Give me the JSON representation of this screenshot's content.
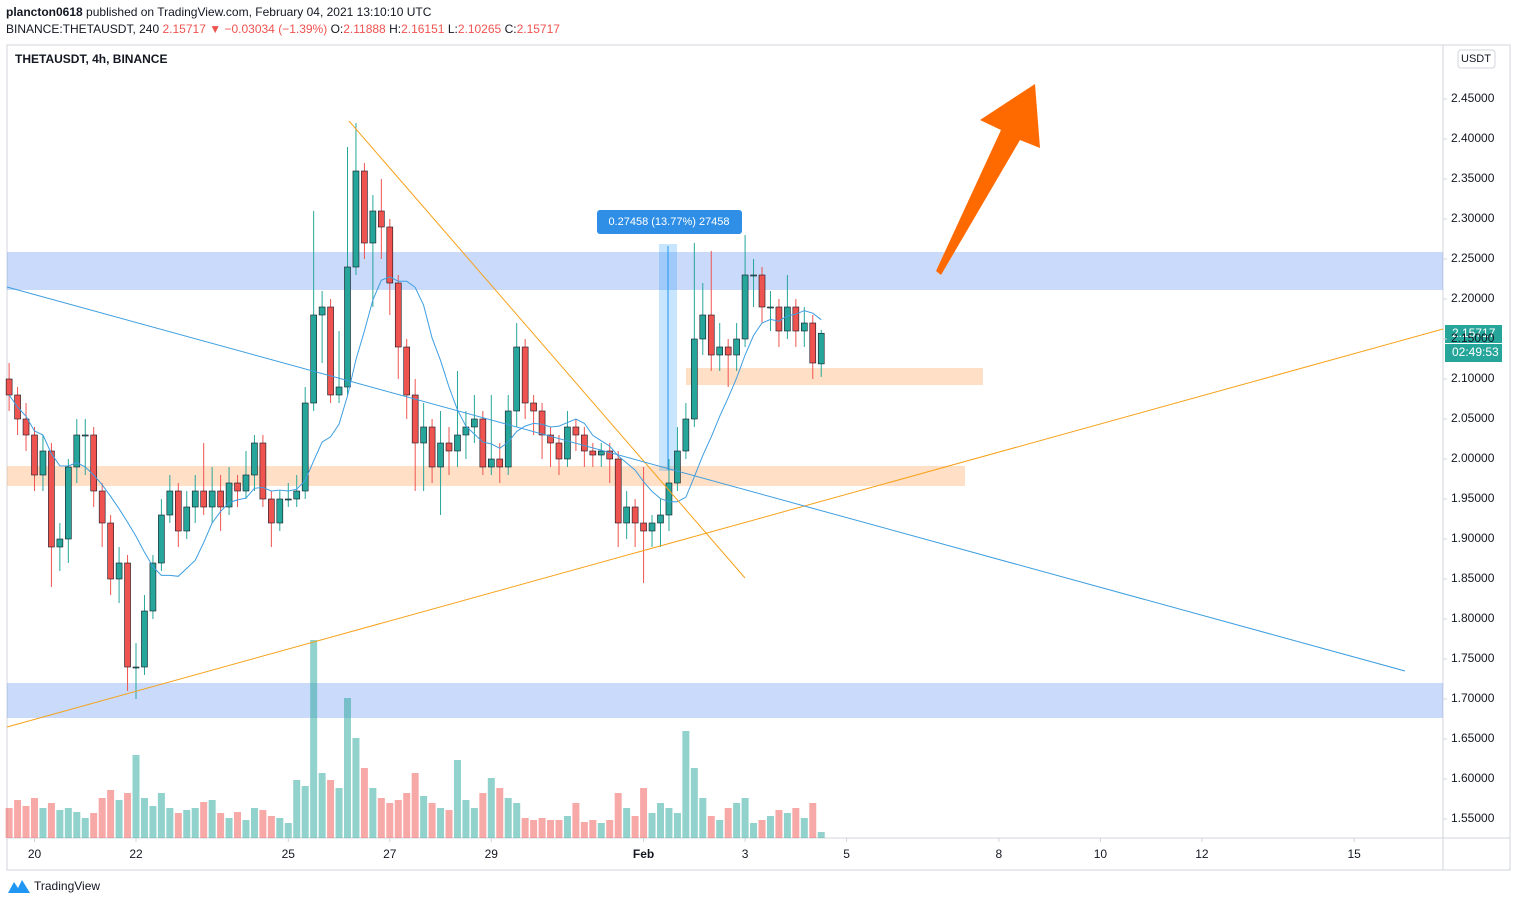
{
  "header": {
    "author": "plancton0618",
    "published": "published on TradingView.com, February 04, 2021 13:10:10 UTC",
    "symbol": "BINANCE:THETAUSDT, 240",
    "arrow": "▼",
    "change": "−0.03034 (−1.39%)",
    "ohlc_labels": [
      "O:",
      "H:",
      "L:",
      "C:"
    ]
  },
  "chart_data": {
    "type": "candlestick",
    "title": "THETAUSDT, 4h, BINANCE",
    "currency": "USDT",
    "x": [
      -12,
      -8,
      -4,
      0,
      4,
      8,
      12,
      16,
      20,
      24,
      28,
      32,
      36,
      40,
      44,
      48,
      52,
      56,
      60,
      64,
      68,
      72,
      76,
      80,
      84,
      88,
      92,
      96,
      100,
      104,
      108,
      112,
      116,
      120,
      124,
      128,
      132,
      136,
      140,
      144,
      148,
      152,
      156,
      160,
      164,
      168,
      172,
      176,
      180,
      184,
      188,
      192,
      196,
      200,
      204,
      208,
      212,
      216,
      220,
      224,
      228,
      232,
      236,
      240,
      244,
      248,
      252,
      256,
      260,
      264,
      268,
      272,
      276,
      280,
      284,
      288,
      292,
      296,
      300,
      304,
      308,
      312,
      316,
      320,
      324,
      328,
      332,
      336,
      340,
      344,
      348,
      352,
      356,
      360,
      364,
      368,
      372
    ],
    "open": [
      2.1,
      2.08,
      2.05,
      2.03,
      1.98,
      2.01,
      1.89,
      1.9,
      1.99,
      2.03,
      2.03,
      1.96,
      1.92,
      1.85,
      1.87,
      1.74,
      1.74,
      1.81,
      1.87,
      1.93,
      1.96,
      1.91,
      1.94,
      1.96,
      1.94,
      1.96,
      1.94,
      1.97,
      1.96,
      1.98,
      2.02,
      1.95,
      1.92,
      1.95,
      1.95,
      1.96,
      2.07,
      2.18,
      2.19,
      2.08,
      2.09,
      2.24,
      2.36,
      2.27,
      2.31,
      2.29,
      2.22,
      2.14,
      2.08,
      2.02,
      2.04,
      1.99,
      2.02,
      2.01,
      2.03,
      2.04,
      2.05,
      1.99,
      2.0,
      1.99,
      2.06,
      2.14,
      2.07,
      2.06,
      2.03,
      2.02,
      2.0,
      2.04,
      2.03,
      2.01,
      2.005,
      2.01,
      2.0,
      1.92,
      1.94,
      1.92,
      1.91,
      1.92,
      1.93,
      1.97,
      2.01,
      2.05,
      2.15,
      2.18,
      2.13,
      2.14,
      2.13,
      2.15,
      2.23,
      2.23,
      2.19,
      2.19,
      2.16,
      2.19,
      2.16,
      2.17,
      2.11888
    ],
    "high": [
      2.12,
      2.09,
      2.07,
      2.04,
      2.03,
      2.02,
      1.92,
      2.0,
      2.05,
      2.05,
      2.04,
      1.97,
      1.93,
      1.89,
      1.88,
      1.77,
      1.83,
      1.88,
      1.95,
      1.98,
      1.97,
      1.96,
      1.98,
      2.02,
      1.99,
      1.98,
      1.99,
      1.98,
      2.01,
      2.03,
      2.03,
      1.96,
      1.96,
      1.97,
      1.98,
      2.09,
      2.31,
      2.21,
      2.2,
      2.16,
      2.39,
      2.42,
      2.37,
      2.33,
      2.35,
      2.3,
      2.23,
      2.15,
      2.1,
      2.07,
      2.05,
      2.06,
      2.04,
      2.11,
      2.06,
      2.08,
      2.06,
      2.08,
      2.02,
      2.08,
      2.17,
      2.15,
      2.08,
      2.07,
      2.04,
      2.03,
      2.06,
      2.05,
      2.04,
      2.02,
      2.02,
      2.02,
      2.01,
      1.96,
      1.95,
      1.99,
      1.93,
      1.95,
      2.0,
      2.04,
      2.07,
      2.27,
      2.22,
      2.26,
      2.17,
      2.15,
      2.17,
      2.28,
      2.25,
      2.24,
      2.21,
      2.2,
      2.23,
      2.2,
      2.19,
      2.18,
      2.16151
    ],
    "low": [
      2.06,
      2.03,
      2.01,
      1.96,
      1.96,
      1.84,
      1.86,
      1.87,
      1.97,
      1.98,
      1.94,
      1.89,
      1.83,
      1.82,
      1.71,
      1.7,
      1.73,
      1.8,
      1.86,
      1.92,
      1.89,
      1.9,
      1.92,
      1.93,
      1.92,
      1.91,
      1.93,
      1.94,
      1.95,
      1.96,
      1.94,
      1.89,
      1.91,
      1.94,
      1.94,
      1.95,
      2.06,
      2.12,
      2.07,
      2.07,
      2.08,
      2.23,
      2.25,
      2.19,
      2.25,
      2.18,
      2.1,
      2.05,
      1.96,
      1.96,
      1.97,
      1.93,
      1.98,
      1.99,
      2.0,
      2.02,
      1.98,
      1.98,
      1.97,
      1.98,
      2.04,
      2.05,
      2.03,
      2.0,
      1.99,
      1.98,
      1.99,
      2.01,
      1.99,
      1.99,
      1.99,
      1.97,
      1.89,
      1.9,
      1.89,
      1.845,
      1.89,
      1.89,
      1.91,
      1.96,
      2.0,
      2.04,
      2.13,
      2.11,
      2.11,
      2.09,
      2.11,
      2.14,
      2.19,
      2.17,
      2.16,
      2.14,
      2.15,
      2.14,
      2.14,
      2.1,
      2.10265
    ],
    "close": [
      2.08,
      2.05,
      2.03,
      1.98,
      2.01,
      1.89,
      1.9,
      1.99,
      2.03,
      2.03,
      1.96,
      1.92,
      1.85,
      1.87,
      1.74,
      1.74,
      1.81,
      1.87,
      1.93,
      1.96,
      1.91,
      1.94,
      1.96,
      1.94,
      1.96,
      1.94,
      1.97,
      1.96,
      1.98,
      2.02,
      1.95,
      1.92,
      1.95,
      1.95,
      1.96,
      2.07,
      2.18,
      2.19,
      2.08,
      2.09,
      2.24,
      2.36,
      2.27,
      2.31,
      2.29,
      2.22,
      2.14,
      2.08,
      2.02,
      2.04,
      1.99,
      2.02,
      2.01,
      2.03,
      2.04,
      2.05,
      1.99,
      2.0,
      1.99,
      2.06,
      2.14,
      2.07,
      2.06,
      2.03,
      2.02,
      2.0,
      2.04,
      2.03,
      2.01,
      2.005,
      2.01,
      2.0,
      1.92,
      1.94,
      1.92,
      1.91,
      1.92,
      1.93,
      1.97,
      2.01,
      2.05,
      2.15,
      2.18,
      2.13,
      2.14,
      2.13,
      2.15,
      2.23,
      2.23,
      2.19,
      2.19,
      2.16,
      2.19,
      2.16,
      2.17,
      2.12,
      2.15717
    ],
    "volume": [
      30,
      38,
      32,
      40,
      30,
      35,
      28,
      30,
      26,
      20,
      25,
      40,
      48,
      38,
      45,
      83,
      40,
      32,
      45,
      30,
      25,
      28,
      30,
      36,
      38,
      25,
      20,
      26,
      18,
      30,
      28,
      22,
      20,
      15,
      58,
      52,
      198,
      65,
      58,
      50,
      140,
      100,
      70,
      50,
      40,
      35,
      38,
      45,
      65,
      42,
      35,
      30,
      28,
      78,
      38,
      30,
      45,
      60,
      50,
      40,
      35,
      20,
      18,
      20,
      18,
      18,
      22,
      35,
      16,
      18,
      15,
      18,
      45,
      30,
      22,
      50,
      25,
      35,
      30,
      25,
      107,
      70,
      40,
      22,
      18,
      30,
      35,
      40,
      15,
      18,
      22,
      28,
      25,
      30,
      20,
      35,
      6
    ],
    "colors": {
      "up": "#26a69a",
      "down": "#ef5350",
      "ma": "#3d9ee0"
    },
    "ylim": [
      1.52625,
      2.5175
    ],
    "yticks": [
      {
        "value": 1.55,
        "label": "1.55000"
      },
      {
        "value": 1.6,
        "label": "1.60000"
      },
      {
        "value": 1.65,
        "label": "1.65000"
      },
      {
        "value": 1.7,
        "label": "1.70000"
      },
      {
        "value": 1.75,
        "label": "1.75000"
      },
      {
        "value": 1.8,
        "label": "1.80000"
      },
      {
        "value": 1.85,
        "label": "1.85000"
      },
      {
        "value": 1.9,
        "label": "1.90000"
      },
      {
        "value": 1.95,
        "label": "1.95000"
      },
      {
        "value": 2.0,
        "label": "2.00000"
      },
      {
        "value": 2.05,
        "label": "2.05000"
      },
      {
        "value": 2.1,
        "label": "2.10000"
      },
      {
        "value": 2.15,
        "label": "2.15000"
      },
      {
        "value": 2.2,
        "label": "2.20000"
      },
      {
        "value": 2.25,
        "label": "2.25000"
      },
      {
        "value": 2.3,
        "label": "2.30000"
      },
      {
        "value": 2.35,
        "label": "2.35000"
      },
      {
        "value": 2.4,
        "label": "2.40000"
      },
      {
        "value": 2.45,
        "label": "2.45000"
      }
    ],
    "xlim": [
      -13,
      666
    ],
    "xticks": [
      {
        "value": 0,
        "label": "20"
      },
      {
        "value": 48,
        "label": "22"
      },
      {
        "value": 120,
        "label": "25"
      },
      {
        "value": 168,
        "label": "27"
      },
      {
        "value": 216,
        "label": "29"
      },
      {
        "value": 288,
        "label": "Feb"
      },
      {
        "value": 336,
        "label": "3"
      },
      {
        "value": 384,
        "label": "5"
      },
      {
        "value": 456,
        "label": "8"
      },
      {
        "value": 504,
        "label": "10"
      },
      {
        "value": 552,
        "label": "12"
      },
      {
        "value": 624,
        "label": "15"
      }
    ],
    "measure": "0.27458 (13.77%) 27458",
    "timer": "02:49:53"
  },
  "footer": {
    "brand": "TradingView"
  }
}
